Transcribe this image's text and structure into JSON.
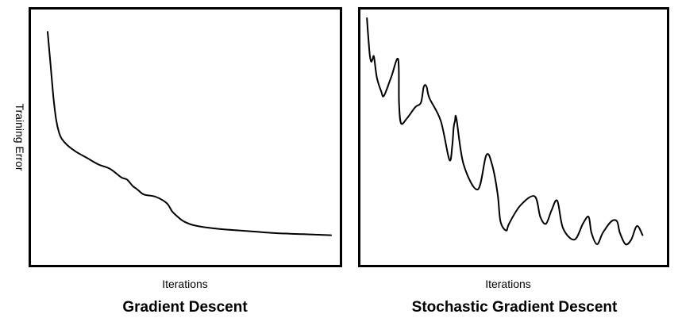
{
  "chart_data": [
    {
      "type": "line",
      "title": "Gradient Descent",
      "xlabel": "Iterations",
      "ylabel": "Training Error",
      "grid": false,
      "legend": "none",
      "xlim": [
        0,
        100
      ],
      "ylim": [
        0,
        100
      ],
      "series": [
        {
          "x": [
            0,
            1,
            2,
            3,
            4,
            5,
            7,
            10,
            14,
            18,
            22,
            26,
            28,
            30,
            31,
            32,
            34,
            38,
            42,
            44,
            46,
            48,
            52,
            60,
            70,
            80,
            90,
            100
          ],
          "y": [
            97,
            82,
            67,
            56,
            50,
            47,
            44,
            41,
            38,
            35,
            33,
            29,
            28,
            25,
            24,
            23,
            21,
            20,
            17,
            13,
            10.5,
            8.5,
            6.5,
            5.0,
            4.0,
            3.0,
            2.5,
            2.0
          ]
        }
      ]
    },
    {
      "type": "line",
      "title": "Stochastic Gradient Descent",
      "xlabel": "Iterations",
      "ylabel": "",
      "grid": false,
      "legend": "none",
      "xlim": [
        0,
        100
      ],
      "ylim": [
        0,
        100
      ],
      "series": [
        {
          "x": [
            2,
            2.4,
            3,
            3.5,
            4,
            4.5,
            5.5,
            7,
            8,
            10.5,
            13,
            13.3,
            14,
            16,
            19,
            21,
            22,
            23,
            24,
            28,
            31,
            32,
            32.5,
            33,
            33.5,
            36,
            41,
            44,
            46,
            48,
            49,
            51,
            52,
            56,
            61,
            63,
            65,
            67,
            69,
            71,
            75,
            78,
            80,
            81,
            83,
            85,
            88,
            90,
            91,
            93,
            95,
            97,
            99
          ],
          "y": [
            99,
            92,
            83,
            80,
            81,
            82,
            73,
            67,
            65,
            73,
            81,
            62,
            53,
            55,
            60,
            62,
            69,
            69,
            64,
            54,
            37,
            43,
            51,
            54,
            55,
            35,
            24,
            39,
            35,
            22,
            10,
            6,
            9,
            17,
            21,
            12,
            9,
            15,
            19,
            7,
            2,
            9,
            12,
            5,
            0,
            5,
            10,
            10,
            5,
            0,
            2,
            8,
            4
          ]
        }
      ]
    }
  ]
}
